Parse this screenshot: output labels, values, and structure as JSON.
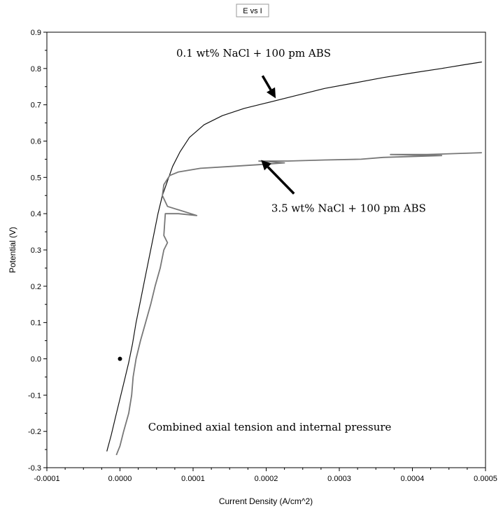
{
  "chart_data": {
    "type": "line",
    "title": "E vs I",
    "xlabel": "Current Density (A/cm^2)",
    "ylabel": "Potential (V)",
    "xlim": [
      -0.0001,
      0.0005
    ],
    "ylim": [
      -0.3,
      0.9
    ],
    "x_ticks": [
      "-0.0001",
      "0.0000",
      "0.0001",
      "0.0002",
      "0.0003",
      "0.0004",
      "0.0005"
    ],
    "y_ticks": [
      "-0.3",
      "-0.2",
      "-0.1",
      "0.0",
      "0.1",
      "0.2",
      "0.3",
      "0.4",
      "0.5",
      "0.6",
      "0.7",
      "0.8",
      "0.9"
    ],
    "grid": false,
    "legend": "none",
    "series": [
      {
        "name": "0.1 wt% NaCl + 100 pm ABS",
        "color": "#111111",
        "x": [
          -1.8e-05,
          -1.2e-05,
          -6e-06,
          0.0,
          6e-06,
          1.2e-05,
          1.7e-05,
          2.2e-05,
          2.8e-05,
          3.4e-05,
          4e-05,
          4.6e-05,
          5.2e-05,
          5.8e-05,
          6.5e-05,
          7.2e-05,
          8.2e-05,
          9.5e-05,
          0.000115,
          0.00014,
          0.00017,
          0.0002,
          0.00024,
          0.00028,
          0.00032,
          0.00036,
          0.0004,
          0.00044,
          0.00047,
          0.000495
        ],
        "y": [
          -0.255,
          -0.21,
          -0.16,
          -0.11,
          -0.06,
          -0.01,
          0.04,
          0.1,
          0.16,
          0.22,
          0.28,
          0.34,
          0.4,
          0.45,
          0.49,
          0.53,
          0.57,
          0.61,
          0.645,
          0.67,
          0.69,
          0.705,
          0.725,
          0.745,
          0.76,
          0.775,
          0.788,
          0.8,
          0.81,
          0.818
        ]
      },
      {
        "name": "3.5 wt% NaCl + 100 pm ABS",
        "color": "#777777",
        "x": [
          -5e-06,
          0.0,
          5e-06,
          1.2e-05,
          1.6e-05,
          1.8e-05,
          2.2e-05,
          2.8e-05,
          3.5e-05,
          4.2e-05,
          4.8e-05,
          5.5e-05,
          6e-05,
          6.5e-05,
          6e-05,
          6.2e-05,
          8e-05,
          0.000105,
          6.5e-05,
          5.8e-05,
          6e-05,
          6.8e-05,
          8e-05,
          0.00011,
          0.00015,
          0.00019,
          0.000225,
          0.00019,
          0.00023,
          0.00028,
          0.00033,
          0.00036,
          0.00044,
          0.00037,
          0.00042,
          0.000495
        ],
        "y": [
          -0.265,
          -0.24,
          -0.2,
          -0.15,
          -0.1,
          -0.05,
          0.0,
          0.05,
          0.1,
          0.15,
          0.2,
          0.25,
          0.3,
          0.32,
          0.34,
          0.4,
          0.4,
          0.395,
          0.42,
          0.45,
          0.48,
          0.505,
          0.515,
          0.525,
          0.53,
          0.535,
          0.54,
          0.545,
          0.545,
          0.548,
          0.55,
          0.555,
          0.56,
          0.563,
          0.563,
          0.568
        ]
      }
    ],
    "annotations": [
      {
        "text": "0.1 wt% NaCl + 100 pm ABS",
        "x": 7.7e-05,
        "y": 0.832
      },
      {
        "text": "3.5 wt% NaCl + 100 pm ABS",
        "x": 0.000207,
        "y": 0.405
      },
      {
        "text": "Combined axial tension and internal pressure",
        "x": 3.85e-05,
        "y": -0.198
      }
    ],
    "arrows": [
      {
        "from": [
          0.000195,
          0.78
        ],
        "to": [
          0.000213,
          0.718
        ]
      },
      {
        "from": [
          0.000238,
          0.455
        ],
        "to": [
          0.000193,
          0.548
        ]
      }
    ],
    "marker": {
      "x": 0.0,
      "y": 0.0
    }
  }
}
